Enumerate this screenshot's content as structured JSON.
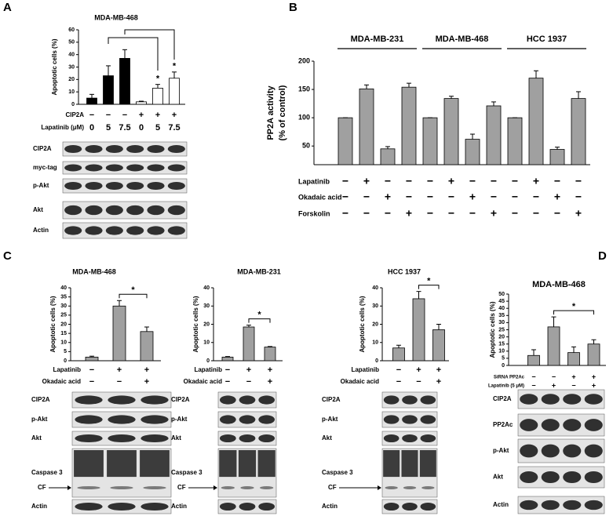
{
  "chart_data": [
    {
      "panel": "A",
      "type": "bar",
      "title": "MDA-MB-468",
      "ylabel": [
        "Apoptotic cells (%)"
      ],
      "ylim": [
        0,
        60
      ],
      "yticks": [
        0,
        10,
        20,
        30,
        40,
        50,
        60
      ],
      "values": [
        5,
        23,
        37,
        2,
        13,
        21
      ],
      "errors": [
        3,
        8,
        7,
        0.5,
        3,
        5
      ],
      "colors": [
        "#000000",
        "#000000",
        "#000000",
        "#ffffff",
        "#ffffff",
        "#ffffff"
      ],
      "annotations": [
        {
          "text": "*",
          "bars": [
            4
          ]
        },
        {
          "text": "*",
          "bars": [
            5
          ]
        }
      ],
      "conditions": [
        {
          "label": "CIP2A",
          "signs": [
            "−",
            "−",
            "−",
            "+",
            "+",
            "+"
          ]
        },
        {
          "label": "Lapatinib (μM)",
          "signs": [
            "0",
            "5",
            "7.5",
            "0",
            "5",
            "7.5"
          ]
        }
      ],
      "blots": [
        "CIP2A",
        "myc-tag",
        "p-Akt",
        "Akt",
        "Actin"
      ]
    },
    {
      "panel": "B",
      "type": "bar",
      "ylabel": [
        "PP2A activity",
        "(% of control)"
      ],
      "ylim": [
        17,
        200
      ],
      "yticks": [
        50,
        100,
        150,
        200
      ],
      "groups": [
        "MDA-MB-231",
        "MDA-MB-468",
        "HCC 1937"
      ],
      "values": [
        100,
        151,
        45,
        154,
        100,
        134,
        62,
        121,
        100,
        170,
        44,
        134
      ],
      "errors": [
        0,
        7,
        4,
        7,
        0,
        4,
        9,
        7,
        0,
        13,
        4,
        12
      ],
      "color": "#a0a0a0",
      "conditions": [
        {
          "label": "Lapatinib",
          "signs": [
            "−",
            "+",
            "−",
            "−",
            "−",
            "+",
            "−",
            "−",
            "−",
            "+",
            "−",
            "−"
          ]
        },
        {
          "label": "Okadaic acid",
          "signs": [
            "−",
            "−",
            "+",
            "−",
            "−",
            "−",
            "+",
            "−",
            "−",
            "−",
            "+",
            "−"
          ]
        },
        {
          "label": "Forskolin",
          "signs": [
            "−",
            "−",
            "−",
            "+",
            "−",
            "−",
            "−",
            "+",
            "−",
            "−",
            "−",
            "+"
          ]
        }
      ]
    },
    {
      "panel": "C",
      "type": "bar",
      "title": "MDA-MB-468",
      "ylabel": [
        "Apoptotic cells (%)"
      ],
      "ylim": [
        0,
        40
      ],
      "yticks": [
        0,
        5,
        10,
        15,
        20,
        25,
        30,
        35,
        40
      ],
      "values": [
        2,
        30,
        16
      ],
      "errors": [
        0.5,
        3,
        2.5
      ],
      "color": "#a0a0a0",
      "annotations": [
        {
          "text": "*",
          "bars": [
            1,
            2
          ]
        }
      ],
      "conditions": [
        {
          "label": "Lapatinib",
          "signs": [
            "−",
            "+",
            "+"
          ]
        },
        {
          "label": "Okadaic acid",
          "signs": [
            "−",
            "−",
            "+"
          ]
        }
      ],
      "blots": [
        "CIP2A",
        "p-Akt",
        "Akt",
        "Caspase 3",
        "Actin"
      ],
      "marker_label": "CF"
    },
    {
      "type": "bar",
      "title": "MDA-MB-231",
      "ylabel": [
        "Apoptotic cells (%)"
      ],
      "ylim": [
        0,
        40
      ],
      "yticks": [
        0,
        10,
        20,
        30,
        40
      ],
      "values": [
        2,
        18.5,
        7.5
      ],
      "errors": [
        0.3,
        1,
        0.3
      ],
      "color": "#a0a0a0",
      "annotations": [
        {
          "text": "*",
          "bars": [
            1,
            2
          ]
        }
      ],
      "conditions": [
        {
          "label": "Lapatinib",
          "signs": [
            "−",
            "+",
            "+"
          ]
        },
        {
          "label": "Okadaic acid",
          "signs": [
            "−",
            "−",
            "+"
          ]
        }
      ],
      "blots": [
        "CIP2A",
        "p-Akt",
        "Akt",
        "Caspase 3",
        "Actin"
      ],
      "marker_label": "CF"
    },
    {
      "type": "bar",
      "title": "HCC 1937",
      "ylabel": [
        "Apoptotic cells (%)"
      ],
      "ylim": [
        0,
        40
      ],
      "yticks": [
        0,
        10,
        20,
        30,
        40
      ],
      "values": [
        7,
        34,
        17
      ],
      "errors": [
        1.5,
        4,
        3
      ],
      "color": "#a0a0a0",
      "annotations": [
        {
          "text": "*",
          "bars": [
            1,
            2
          ]
        }
      ],
      "conditions": [
        {
          "label": "Lapatinib",
          "signs": [
            "−",
            "+",
            "+"
          ]
        },
        {
          "label": "Okadaic acid",
          "signs": [
            "−",
            "−",
            "+"
          ]
        }
      ],
      "blots": [
        "CIP2A",
        "p-Akt",
        "Akt",
        "Caspase 3",
        "Actin"
      ],
      "marker_label": "CF"
    },
    {
      "panel": "D",
      "type": "bar",
      "title": "MDA-MB-468",
      "ylabel": [
        "Apoptotic cells (%)"
      ],
      "ylim": [
        0,
        50
      ],
      "yticks": [
        0,
        5,
        10,
        15,
        20,
        25,
        30,
        35,
        40,
        45,
        50
      ],
      "values": [
        7,
        27,
        9,
        15
      ],
      "errors": [
        4,
        7,
        4,
        3
      ],
      "color": "#a0a0a0",
      "annotations": [
        {
          "text": "*",
          "bars": [
            1,
            3
          ]
        }
      ],
      "conditions": [
        {
          "label": "SiRNA PP2Ac",
          "signs": [
            "−",
            "−",
            "+",
            "+"
          ]
        },
        {
          "label": "Lapatinib (5 μM)",
          "signs": [
            "−",
            "+",
            "−",
            "+"
          ]
        }
      ],
      "blots": [
        "CIP2A",
        "PP2Ac",
        "p-Akt",
        "Akt",
        "Actin"
      ]
    }
  ]
}
